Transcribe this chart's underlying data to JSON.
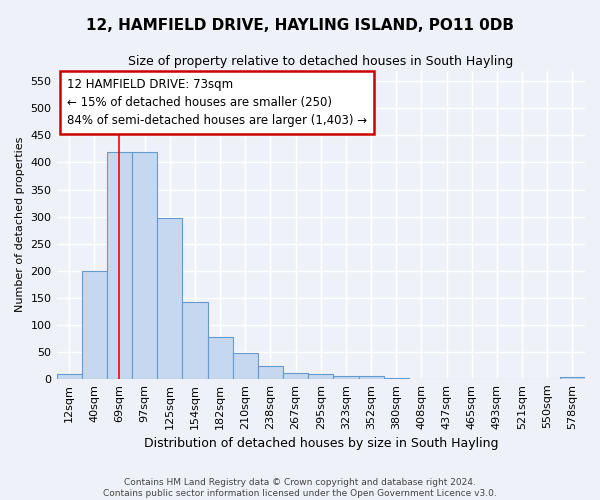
{
  "title": "12, HAMFIELD DRIVE, HAYLING ISLAND, PO11 0DB",
  "subtitle": "Size of property relative to detached houses in South Hayling",
  "xlabel": "Distribution of detached houses by size in South Hayling",
  "ylabel": "Number of detached properties",
  "bin_labels": [
    "12sqm",
    "40sqm",
    "69sqm",
    "97sqm",
    "125sqm",
    "154sqm",
    "182sqm",
    "210sqm",
    "238sqm",
    "267sqm",
    "295sqm",
    "323sqm",
    "352sqm",
    "380sqm",
    "408sqm",
    "437sqm",
    "465sqm",
    "493sqm",
    "521sqm",
    "550sqm",
    "578sqm"
  ],
  "bar_heights": [
    8,
    200,
    420,
    420,
    298,
    142,
    77,
    48,
    23,
    11,
    8,
    6,
    6,
    1,
    0,
    0,
    0,
    0,
    0,
    0,
    3
  ],
  "bar_color": "#c5d8f0",
  "bar_edge_color": "#6699cc",
  "property_line_x": 1.97,
  "ylim": [
    0,
    570
  ],
  "yticks": [
    0,
    50,
    100,
    150,
    200,
    250,
    300,
    350,
    400,
    450,
    500,
    550
  ],
  "annotation_line1": "12 HAMFIELD DRIVE: 73sqm",
  "annotation_line2": "← 15% of detached houses are smaller (250)",
  "annotation_line3": "84% of semi-detached houses are larger (1,403) →",
  "annotation_box_color": "#ffffff",
  "annotation_box_edge_color": "#cc0000",
  "footer_text": "Contains HM Land Registry data © Crown copyright and database right 2024.\nContains public sector information licensed under the Open Government Licence v3.0.",
  "background_color": "#eef2f8",
  "grid_color": "#ffffff",
  "title_fontsize": 11,
  "subtitle_fontsize": 9,
  "xlabel_fontsize": 9,
  "ylabel_fontsize": 8,
  "tick_fontsize": 8,
  "annotation_fontsize": 8.5,
  "footer_fontsize": 6.5
}
